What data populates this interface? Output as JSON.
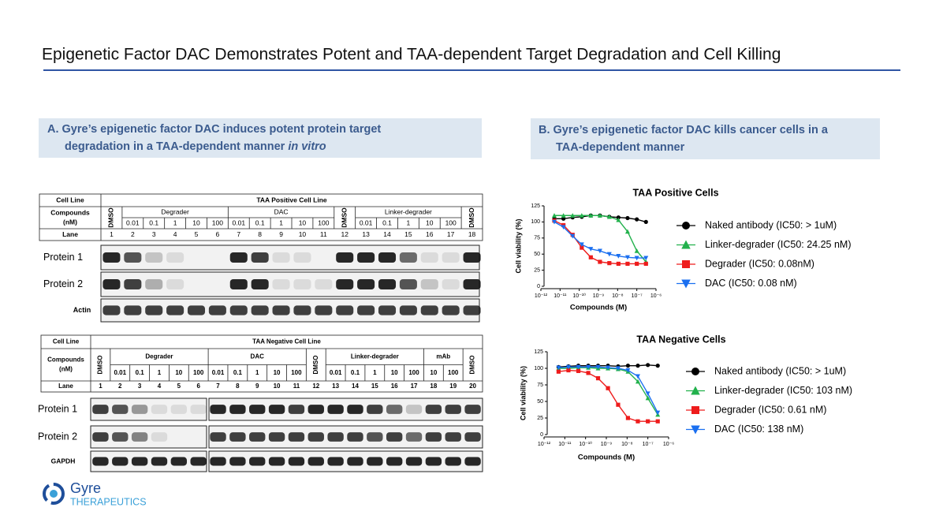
{
  "header": {
    "title": "Epigenetic Factor DAC Demonstrates Potent and TAA-dependent Target Degradation and Cell Killing"
  },
  "panel_a": {
    "heading_line1": "A. Gyre’s epigenetic factor DAC induces potent protein target",
    "heading_line2": "degradation in a TAA-dependent manner ",
    "heading_italic": "in vitro",
    "table_top": {
      "cell_line_label": "Cell Line",
      "cell_line": "TAA Positive Cell Line",
      "compounds_label": [
        "Compounds",
        "(nM)"
      ],
      "lane_label": "Lane",
      "groups": [
        {
          "label": "DMSO"
        },
        {
          "label": "Degrader",
          "doses": [
            "0.01",
            "0.1",
            "1",
            "10",
            "100"
          ]
        },
        {
          "label": "DAC",
          "doses": [
            "0.01",
            "0.1",
            "1",
            "10",
            "100"
          ]
        },
        {
          "label": "DMSO"
        },
        {
          "label": "Linker-degrader",
          "doses": [
            "0.01",
            "0.1",
            "1",
            "10",
            "100"
          ]
        },
        {
          "label": "DMSO"
        }
      ],
      "lanes": [
        1,
        2,
        3,
        4,
        5,
        6,
        7,
        8,
        9,
        10,
        11,
        12,
        13,
        14,
        15,
        16,
        17,
        18
      ],
      "blots": [
        "Protein 1",
        "Protein 2",
        "Actin"
      ]
    },
    "table_bottom": {
      "cell_line_label": "Cell Line",
      "cell_line": "TAA Negative Cell Line",
      "compounds_label": [
        "Compounds",
        "(nM)"
      ],
      "lane_label": "Lane",
      "groups": [
        {
          "label": "DMSO"
        },
        {
          "label": "Degrader",
          "doses": [
            "0.01",
            "0.1",
            "1",
            "10",
            "100"
          ]
        },
        {
          "label": "DAC",
          "doses": [
            "0.01",
            "0.1",
            "1",
            "10",
            "100"
          ]
        },
        {
          "label": "DMSO"
        },
        {
          "label": "Linker-degrader",
          "doses": [
            "0.01",
            "0.1",
            "1",
            "10",
            "100"
          ]
        },
        {
          "label": "mAb",
          "doses": [
            "10",
            "100"
          ]
        },
        {
          "label": "DMSO"
        }
      ],
      "lanes": [
        1,
        2,
        3,
        4,
        5,
        6,
        7,
        8,
        9,
        10,
        11,
        12,
        13,
        14,
        15,
        16,
        17,
        18,
        19,
        20
      ],
      "blots": [
        "Protein 1",
        "Protein 2",
        "GAPDH"
      ]
    }
  },
  "panel_b": {
    "heading_line1": "B. Gyre’s epigenetic factor DAC kills cancer cells in a",
    "heading_line2": "TAA-dependent manner"
  },
  "chart_data": [
    {
      "type": "line",
      "title": "TAA Positive Cells",
      "x_label": "Compounds (M)",
      "y_label": "Cell viability (%)",
      "xscale": "log",
      "xlim": [
        1e-12,
        1e-06
      ],
      "xticks": [
        {
          "value": 1e-12,
          "label": "10⁻¹²"
        },
        {
          "value": 1e-11,
          "label": "10⁻¹¹"
        },
        {
          "value": 1e-10,
          "label": "10⁻¹⁰"
        },
        {
          "value": 1e-09,
          "label": "10⁻⁹"
        },
        {
          "value": 1e-08,
          "label": "10⁻⁸"
        },
        {
          "value": 1e-07,
          "label": "10⁻⁷"
        },
        {
          "value": 1e-06,
          "label": "10⁻⁶"
        }
      ],
      "ylim": [
        0,
        125
      ],
      "yticks": [
        0,
        25,
        50,
        75,
        100,
        125
      ],
      "x": [
        5e-12,
        1.5e-11,
        4.5e-11,
        1.35e-10,
        4e-10,
        1.2e-09,
        3.7e-09,
        1.1e-08,
        3.3e-08,
        1e-07,
        3e-07
      ],
      "series": [
        {
          "name": "Naked antibody (IC50: > 1uM)",
          "color": "#000000",
          "marker": "circle",
          "values": [
            105,
            105,
            107,
            108,
            110,
            110,
            108,
            107,
            106,
            104,
            100
          ]
        },
        {
          "name": "Linker-degrader (IC50: 24.25 nM)",
          "color": "#22b14c",
          "marker": "triangle-up",
          "values": [
            110,
            110,
            110,
            110,
            110,
            110,
            108,
            103,
            85,
            55,
            38
          ]
        },
        {
          "name": "Degrader (IC50: 0.08nM)",
          "color": "#ee1c1c",
          "marker": "square",
          "values": [
            102,
            95,
            80,
            60,
            45,
            38,
            36,
            35,
            35,
            35,
            35
          ]
        },
        {
          "name": "DAC (IC50: 0.08 nM)",
          "color": "#1a6ff0",
          "marker": "triangle-down",
          "values": [
            100,
            92,
            78,
            65,
            58,
            55,
            50,
            47,
            45,
            44,
            44
          ]
        }
      ]
    },
    {
      "type": "line",
      "title": "TAA Negative Cells",
      "x_label": "Compounds (M)",
      "y_label": "Cell viability (%)",
      "xscale": "log",
      "xlim": [
        1e-12,
        1e-06
      ],
      "xticks": [
        {
          "value": 1e-12,
          "label": "10⁻¹²"
        },
        {
          "value": 1e-11,
          "label": "10⁻¹¹"
        },
        {
          "value": 1e-10,
          "label": "10⁻¹⁰"
        },
        {
          "value": 1e-09,
          "label": "10⁻⁹"
        },
        {
          "value": 1e-08,
          "label": "10⁻⁸"
        },
        {
          "value": 1e-07,
          "label": "10⁻⁷"
        },
        {
          "value": 1e-06,
          "label": "10⁻⁶"
        }
      ],
      "ylim": [
        0,
        125
      ],
      "yticks": [
        0,
        25,
        50,
        75,
        100,
        125
      ],
      "x": [
        5e-12,
        1.5e-11,
        4.5e-11,
        1.35e-10,
        4e-10,
        1.2e-09,
        3.7e-09,
        1.1e-08,
        3.3e-08,
        1e-07,
        3e-07
      ],
      "series": [
        {
          "name": "Naked antibody (IC50: > 1uM)",
          "color": "#000000",
          "marker": "circle",
          "values": [
            102,
            103,
            104,
            104,
            104,
            104,
            103,
            104,
            104,
            105,
            104
          ]
        },
        {
          "name": "Linker-degrader (IC50: 103 nM)",
          "color": "#22b14c",
          "marker": "triangle-up",
          "values": [
            100,
            100,
            101,
            101,
            100,
            100,
            99,
            95,
            80,
            55,
            30
          ]
        },
        {
          "name": "Degrader (IC50: 0.61 nM)",
          "color": "#ee1c1c",
          "marker": "square",
          "values": [
            95,
            97,
            96,
            93,
            85,
            70,
            45,
            25,
            20,
            20,
            20
          ]
        },
        {
          "name": "DAC (IC50: 138 nM)",
          "color": "#1a6ff0",
          "marker": "triangle-down",
          "values": [
            101,
            102,
            102,
            102,
            102,
            101,
            100,
            97,
            88,
            62,
            33
          ]
        }
      ]
    }
  ],
  "logo": {
    "name": "Gyre",
    "subtitle": "THERAPEUTICS"
  }
}
